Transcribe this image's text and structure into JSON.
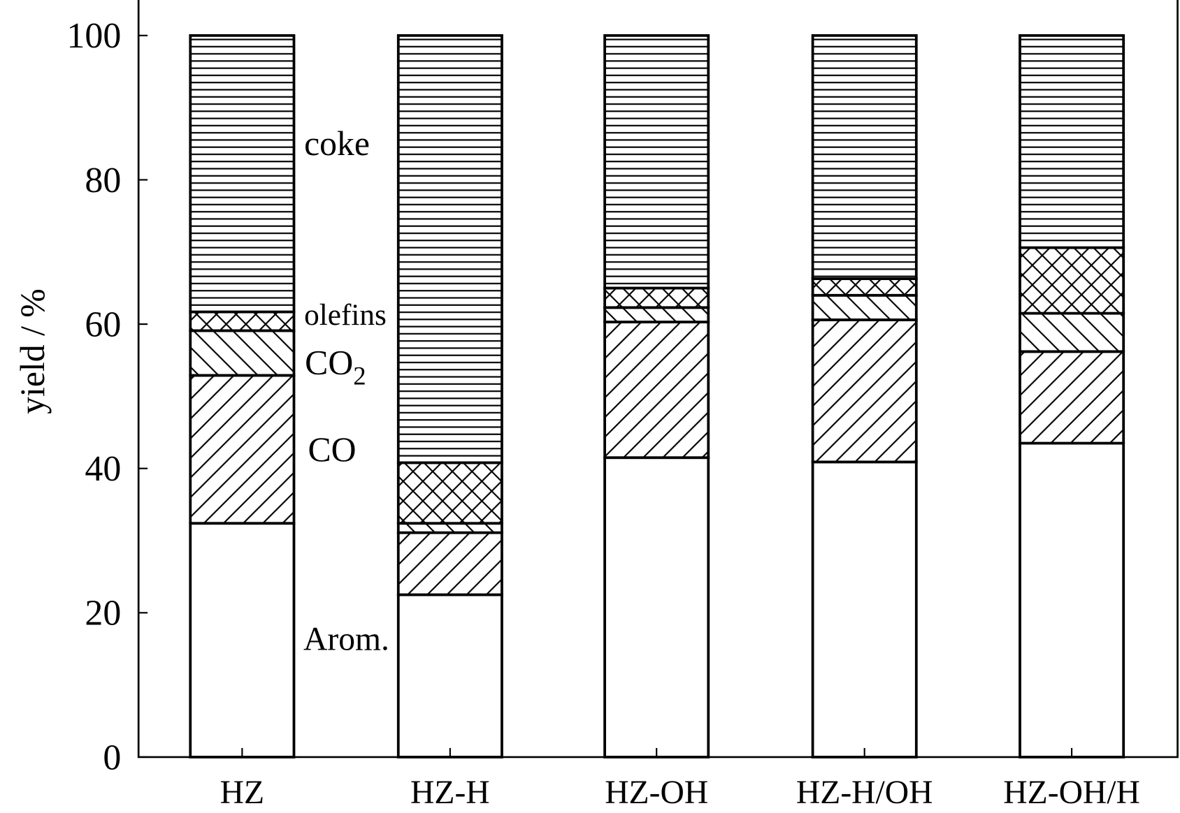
{
  "chart_data": {
    "type": "bar",
    "stacked": true,
    "ylabel": "yield / %",
    "xlabel": "",
    "ylim": [
      0,
      100
    ],
    "yticks": [
      0,
      20,
      40,
      60,
      80,
      100
    ],
    "grid": false,
    "categories": [
      "HZ",
      "HZ-H",
      "HZ-OH",
      "HZ-H/OH",
      "HZ-OH/H"
    ],
    "series": [
      {
        "name": "Arom.",
        "pattern": "none",
        "values": [
          32.4,
          22.5,
          41.5,
          40.9,
          43.5
        ]
      },
      {
        "name": "CO",
        "pattern": "diagonal-forward",
        "values": [
          20.5,
          8.6,
          18.8,
          19.7,
          12.7
        ]
      },
      {
        "name": "CO2",
        "pattern": "diagonal-backward",
        "values": [
          6.2,
          1.3,
          2.0,
          3.4,
          5.3
        ]
      },
      {
        "name": "olefins",
        "pattern": "crosshatch",
        "values": [
          2.6,
          8.4,
          2.7,
          2.3,
          9.1
        ]
      },
      {
        "name": "coke",
        "pattern": "horizontal",
        "values": [
          38.3,
          59.2,
          35.0,
          33.7,
          29.4
        ]
      }
    ],
    "annotations": [
      {
        "text": "coke",
        "series": "coke"
      },
      {
        "text": "olefins",
        "series": "olefins"
      },
      {
        "text": "CO",
        "sub": "2",
        "series": "CO2"
      },
      {
        "text": "CO",
        "series": "CO"
      },
      {
        "text": "Arom.",
        "series": "Arom."
      }
    ],
    "colors": {
      "stroke": "#000000",
      "fill": "#ffffff"
    }
  }
}
